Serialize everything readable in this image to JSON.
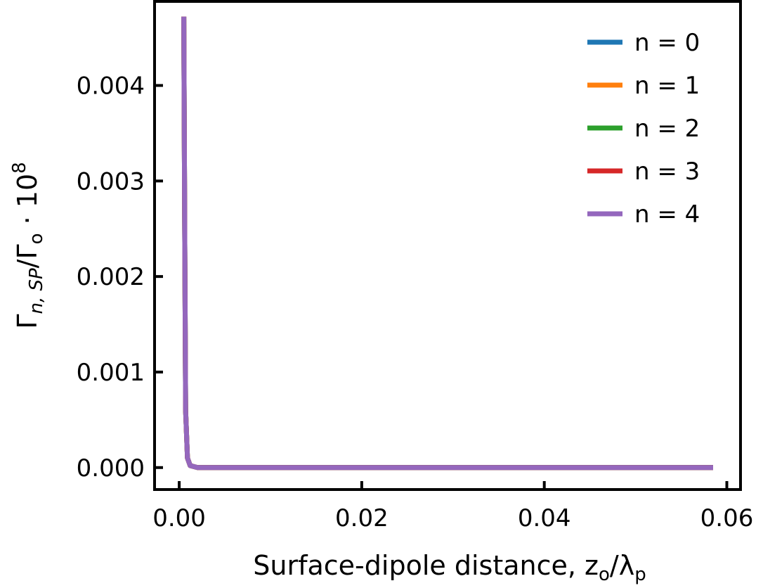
{
  "chart_data": {
    "type": "line",
    "title": "",
    "xlabel": "Surface-dipole distance, z",
    "xlabel_sub1": "o",
    "xlabel_mid": "/λ",
    "xlabel_sub2": "p",
    "ylabel_main": "Γ",
    "ylabel_sub1": "n, SP",
    "ylabel_mid": "/Γ",
    "ylabel_sub2": "o",
    "ylabel_tail": " · 10",
    "ylabel_sup": "8",
    "xlim": [
      -0.0027,
      0.0615
    ],
    "ylim": [
      -0.00023,
      0.00488
    ],
    "xticks": [
      0.0,
      0.02,
      0.04,
      0.06
    ],
    "xtick_labels": [
      "0.00",
      "0.02",
      "0.04",
      "0.06"
    ],
    "yticks": [
      0.0,
      0.001,
      0.002,
      0.003,
      0.004
    ],
    "ytick_labels": [
      "0.000",
      "0.001",
      "0.002",
      "0.003",
      "0.004"
    ],
    "grid": false,
    "legend_position": "top-right",
    "series": [
      {
        "name": "n = 0",
        "color": "#1f77b4",
        "x": [
          0.0005,
          0.0006,
          0.0007,
          0.0009,
          0.0012,
          0.002,
          0.005,
          0.01,
          0.02,
          0.03,
          0.04,
          0.05,
          0.0585
        ],
        "y": [
          0.00472,
          0.0025,
          0.0006,
          0.0001,
          2e-05,
          0.0,
          0.0,
          0.0,
          0.0,
          0.0,
          0.0,
          0.0,
          0.0
        ]
      },
      {
        "name": "n = 1",
        "color": "#ff7f0e",
        "x": [
          0.0005,
          0.0006,
          0.0007,
          0.0009,
          0.0012,
          0.002,
          0.005,
          0.01,
          0.02,
          0.03,
          0.04,
          0.05,
          0.0585
        ],
        "y": [
          0.00472,
          0.0025,
          0.0006,
          0.0001,
          2e-05,
          0.0,
          0.0,
          0.0,
          0.0,
          0.0,
          0.0,
          0.0,
          0.0
        ]
      },
      {
        "name": "n = 2",
        "color": "#2ca02c",
        "x": [
          0.0005,
          0.0006,
          0.0007,
          0.0009,
          0.0012,
          0.002,
          0.005,
          0.01,
          0.02,
          0.03,
          0.04,
          0.05,
          0.0585
        ],
        "y": [
          0.00472,
          0.0025,
          0.0006,
          0.0001,
          2e-05,
          0.0,
          0.0,
          0.0,
          0.0,
          0.0,
          0.0,
          0.0,
          0.0
        ]
      },
      {
        "name": "n = 3",
        "color": "#d62728",
        "x": [
          0.0005,
          0.0006,
          0.0007,
          0.0009,
          0.0012,
          0.002,
          0.005,
          0.01,
          0.02,
          0.03,
          0.04,
          0.05,
          0.0585
        ],
        "y": [
          0.00472,
          0.0025,
          0.0006,
          0.0001,
          2e-05,
          0.0,
          0.0,
          0.0,
          0.0,
          0.0,
          0.0,
          0.0,
          0.0
        ]
      },
      {
        "name": "n = 4",
        "color": "#9467bd",
        "x": [
          0.0005,
          0.0006,
          0.0007,
          0.0009,
          0.0012,
          0.002,
          0.005,
          0.01,
          0.02,
          0.03,
          0.04,
          0.05,
          0.0585
        ],
        "y": [
          0.00472,
          0.0025,
          0.0006,
          0.0001,
          2e-05,
          0.0,
          0.0,
          0.0,
          0.0,
          0.0,
          0.0,
          0.0,
          0.0
        ]
      }
    ]
  }
}
